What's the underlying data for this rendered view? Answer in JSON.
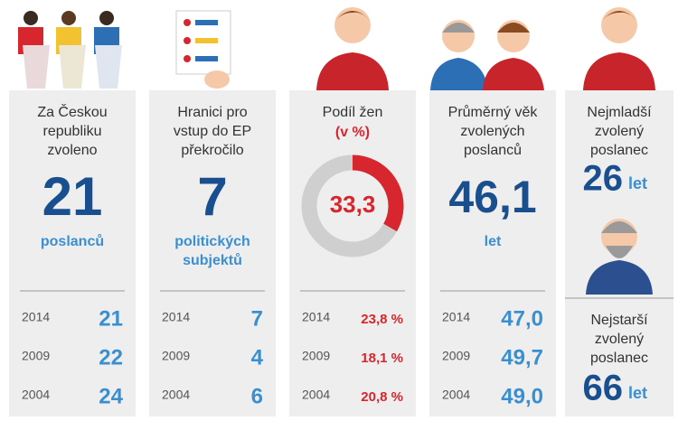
{
  "columns": [
    {
      "title": [
        "Za Českou",
        "republiku",
        "zvoleno"
      ],
      "value": "21",
      "unit": [
        "poslanců"
      ],
      "history": [
        [
          "2014",
          "21"
        ],
        [
          "2009",
          "22"
        ],
        [
          "2004",
          "24"
        ]
      ]
    },
    {
      "title": [
        "Hranici pro",
        "vstup do EP",
        "překročilo"
      ],
      "value": "7",
      "unit": [
        "politických",
        "subjektů"
      ],
      "history": [
        [
          "2014",
          "7"
        ],
        [
          "2009",
          "4"
        ],
        [
          "2004",
          "6"
        ]
      ]
    },
    {
      "title": [
        "Podíl žen"
      ],
      "subtitle": "(v %)",
      "donut": {
        "value": 33.3,
        "label": "33,3"
      },
      "history": [
        [
          "2014",
          "23,8 %"
        ],
        [
          "2009",
          "18,1 %"
        ],
        [
          "2004",
          "20,8 %"
        ]
      ]
    },
    {
      "title": [
        "Průměrný věk",
        "zvolených",
        "poslanců"
      ],
      "value": "46,1",
      "unit": [
        "let"
      ],
      "history": [
        [
          "2014",
          "47,0"
        ],
        [
          "2009",
          "49,7"
        ],
        [
          "2004",
          "49,0"
        ]
      ]
    },
    {
      "youngest": {
        "title": [
          "Nejmladší",
          "zvolený",
          "poslanec"
        ],
        "value": "26",
        "unit": "let"
      },
      "oldest": {
        "title": [
          "Nejstarší",
          "zvolený",
          "poslanec"
        ],
        "value": "66",
        "unit": "let"
      }
    }
  ]
}
